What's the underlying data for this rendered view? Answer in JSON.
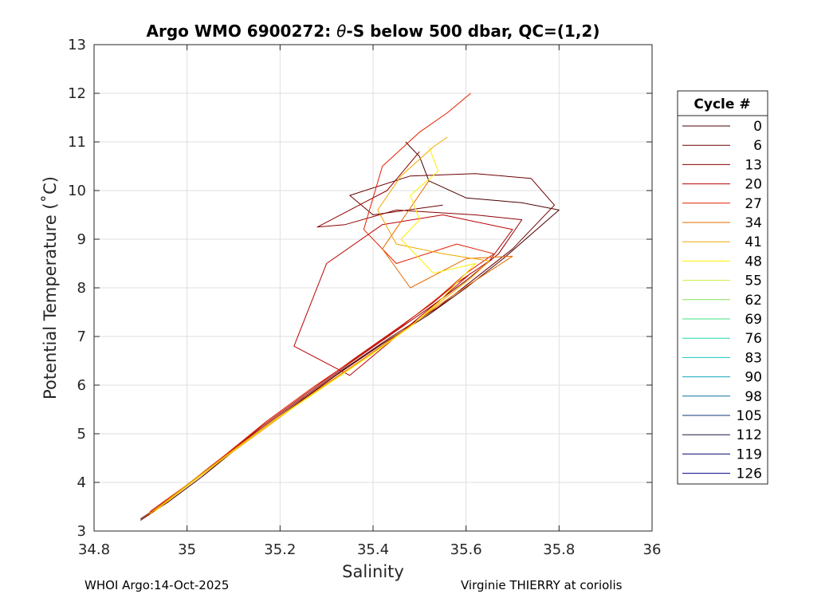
{
  "chart_data": {
    "type": "line",
    "title_prefix": "Argo WMO 6900272: ",
    "title_theta": "θ",
    "title_suffix": "-S below 500 dbar,  QC=(1,2)",
    "xlabel": "Salinity",
    "ylabel": "Potential Temperature (˚C)",
    "xlim": [
      34.8,
      36
    ],
    "ylim": [
      3,
      13
    ],
    "xticks": [
      34.8,
      35,
      35.2,
      35.4,
      35.6,
      35.8,
      36
    ],
    "yticks": [
      3,
      4,
      5,
      6,
      7,
      8,
      9,
      10,
      11,
      12,
      13
    ],
    "grid": true,
    "legend_title": "Cycle #",
    "legend_position": "right",
    "legend": [
      {
        "label": "0",
        "color": "#4a0000"
      },
      {
        "label": "6",
        "color": "#6b0000"
      },
      {
        "label": "13",
        "color": "#8c0000"
      },
      {
        "label": "20",
        "color": "#b80000"
      },
      {
        "label": "27",
        "color": "#e02000"
      },
      {
        "label": "34",
        "color": "#e86a00"
      },
      {
        "label": "41",
        "color": "#f0a800"
      },
      {
        "label": "48",
        "color": "#ffee00"
      },
      {
        "label": "55",
        "color": "#c8f040"
      },
      {
        "label": "62",
        "color": "#80e060"
      },
      {
        "label": "69",
        "color": "#40e080"
      },
      {
        "label": "76",
        "color": "#20d8b0"
      },
      {
        "label": "83",
        "color": "#10c8c8"
      },
      {
        "label": "90",
        "color": "#10a8b8"
      },
      {
        "label": "98",
        "color": "#1070a0"
      },
      {
        "label": "105",
        "color": "#103878"
      },
      {
        "label": "112",
        "color": "#181848"
      },
      {
        "label": "119",
        "color": "#0c0c70"
      },
      {
        "label": "126",
        "color": "#000088"
      }
    ],
    "series": [
      {
        "name": "0",
        "color": "#4a0000",
        "s": [
          34.9,
          34.96,
          35.03,
          35.12,
          35.22,
          35.32,
          35.42,
          35.52,
          35.6,
          35.68,
          35.8,
          35.72,
          35.6,
          35.52,
          35.5,
          35.47
        ],
        "t": [
          3.22,
          3.6,
          4.1,
          4.8,
          5.5,
          6.2,
          6.85,
          7.45,
          8.0,
          8.6,
          9.6,
          9.75,
          9.85,
          10.2,
          10.7,
          11.0
        ]
      },
      {
        "name": "6",
        "color": "#6b0000",
        "s": [
          34.9,
          34.97,
          35.05,
          35.14,
          35.24,
          35.34,
          35.44,
          35.54,
          35.62,
          35.7,
          35.79,
          35.74,
          35.62,
          35.48,
          35.35,
          35.4,
          35.55
        ],
        "t": [
          3.25,
          3.7,
          4.3,
          4.95,
          5.65,
          6.35,
          7.0,
          7.6,
          8.2,
          8.8,
          9.7,
          10.25,
          10.35,
          10.3,
          9.9,
          9.5,
          9.7
        ]
      },
      {
        "name": "13",
        "color": "#8c0000",
        "s": [
          34.91,
          34.98,
          35.06,
          35.15,
          35.25,
          35.35,
          35.44,
          35.53,
          35.6,
          35.67,
          35.72,
          35.62,
          35.45,
          35.34,
          35.28,
          35.43,
          35.5
        ],
        "t": [
          3.3,
          3.8,
          4.4,
          5.05,
          5.75,
          6.45,
          7.05,
          7.65,
          8.15,
          8.7,
          9.4,
          9.5,
          9.6,
          9.3,
          9.25,
          10.0,
          10.8
        ]
      },
      {
        "name": "20",
        "color": "#b80000",
        "s": [
          34.92,
          34.99,
          35.07,
          35.16,
          35.26,
          35.36,
          35.45,
          35.53,
          35.58,
          35.65,
          35.7,
          35.55,
          35.42,
          35.3,
          35.23,
          35.35,
          35.45,
          35.55,
          35.61
        ],
        "t": [
          3.35,
          3.85,
          4.45,
          5.15,
          5.85,
          6.55,
          7.15,
          7.7,
          8.1,
          8.55,
          9.2,
          9.5,
          9.3,
          8.5,
          6.8,
          6.2,
          7.0,
          7.8,
          8.3
        ]
      },
      {
        "name": "27",
        "color": "#e02000",
        "s": [
          34.92,
          35.0,
          35.08,
          35.17,
          35.27,
          35.37,
          35.46,
          35.54,
          35.6,
          35.66,
          35.58,
          35.45,
          35.38,
          35.42,
          35.5,
          35.56,
          35.61
        ],
        "t": [
          3.4,
          3.95,
          4.55,
          5.25,
          5.95,
          6.6,
          7.2,
          7.8,
          8.3,
          8.7,
          8.9,
          8.5,
          9.2,
          10.5,
          11.2,
          11.6,
          12.0
        ]
      },
      {
        "name": "34",
        "color": "#e86a00",
        "s": [
          34.91,
          34.99,
          35.08,
          35.18,
          35.28,
          35.38,
          35.47,
          35.55,
          35.62,
          35.7,
          35.6,
          35.48,
          35.42,
          35.47,
          35.52
        ],
        "t": [
          3.3,
          3.85,
          4.5,
          5.2,
          5.9,
          6.55,
          7.15,
          7.7,
          8.15,
          8.65,
          8.6,
          8.0,
          8.8,
          9.5,
          10.2
        ]
      },
      {
        "name": "41",
        "color": "#f0a800",
        "s": [
          34.92,
          35.0,
          35.09,
          35.19,
          35.29,
          35.39,
          35.48,
          35.55,
          35.61,
          35.65,
          35.55,
          35.45,
          35.41,
          35.46,
          35.53,
          35.56
        ],
        "t": [
          3.35,
          3.95,
          4.6,
          5.3,
          5.95,
          6.6,
          7.2,
          7.75,
          8.2,
          8.55,
          8.7,
          8.9,
          9.6,
          10.3,
          10.9,
          11.1
        ]
      },
      {
        "name": "48",
        "color": "#ffee00",
        "s": [
          34.93,
          35.01,
          35.1,
          35.2,
          35.3,
          35.4,
          35.48,
          35.54,
          35.58,
          35.62,
          35.53,
          35.46,
          35.5,
          35.48,
          35.54,
          35.52
        ],
        "t": [
          3.4,
          4.0,
          4.65,
          5.35,
          6.0,
          6.65,
          7.2,
          7.7,
          8.1,
          8.5,
          8.3,
          9.0,
          9.4,
          9.9,
          10.4,
          10.9
        ]
      }
    ]
  },
  "footer": {
    "left": "WHOI Argo:14-Oct-2025",
    "right": "Virginie THIERRY at coriolis"
  }
}
